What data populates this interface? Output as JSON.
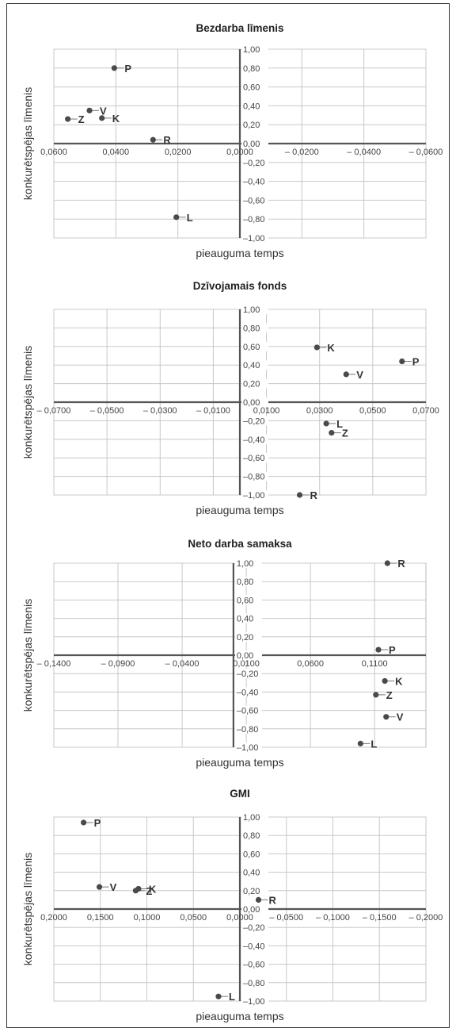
{
  "chart_data": [
    {
      "type": "scatter",
      "title": "Bezdarba līmenis",
      "xlabel": "pieauguma temps",
      "ylabel": "konkurētspējas līmenis",
      "xlim": [
        0.06,
        -0.06
      ],
      "ylim": [
        -1.0,
        1.0
      ],
      "x_reversed": true,
      "xticks": [
        "0,0600",
        "0,0400",
        "0,0200",
        "0,0000",
        "– 0,0200",
        "– 0,0400",
        "– 0,0600"
      ],
      "xtick_values": [
        0.06,
        0.04,
        0.02,
        0.0,
        -0.02,
        -0.04,
        -0.06
      ],
      "yticks": [
        "1,00",
        "0,80",
        "0,60",
        "0,40",
        "0,20",
        "0,00",
        "–0,20",
        "–0,40",
        "–0,60",
        "–0,80",
        "–1,00"
      ],
      "ytick_values": [
        1.0,
        0.8,
        0.6,
        0.4,
        0.2,
        0.0,
        -0.2,
        -0.4,
        -0.6,
        -0.8,
        -1.0
      ],
      "grid": true,
      "points": [
        {
          "label": "P",
          "x": 0.0405,
          "y": 0.8
        },
        {
          "label": "V",
          "x": 0.0485,
          "y": 0.35
        },
        {
          "label": "Z",
          "x": 0.0555,
          "y": 0.26
        },
        {
          "label": "K",
          "x": 0.0445,
          "y": 0.27
        },
        {
          "label": "R",
          "x": 0.028,
          "y": 0.04
        },
        {
          "label": "L",
          "x": 0.0205,
          "y": -0.78
        }
      ]
    },
    {
      "type": "scatter",
      "title": "Dzīvojamais fonds",
      "xlabel": "pieauguma temps",
      "ylabel": "konkurētspējas līmenis",
      "xlim": [
        -0.07,
        0.07
      ],
      "ylim": [
        -1.0,
        1.0
      ],
      "x_reversed": false,
      "xticks": [
        "– 0,0700",
        "– 0,0500",
        "– 0,0300",
        "– 0,0100",
        "0,0100",
        "0,0300",
        "0,0500",
        "0,0700"
      ],
      "xtick_values": [
        -0.07,
        -0.05,
        -0.03,
        -0.01,
        0.01,
        0.03,
        0.05,
        0.07
      ],
      "yticks": [
        "1,00",
        "0,80",
        "0,60",
        "0,40",
        "0,20",
        "0,00",
        "–0,20",
        "–0,40",
        "–0,60",
        "–0,80",
        "–1,00"
      ],
      "ytick_values": [
        1.0,
        0.8,
        0.6,
        0.4,
        0.2,
        0.0,
        -0.2,
        -0.4,
        -0.6,
        -0.8,
        -1.0
      ],
      "grid": true,
      "points": [
        {
          "label": "K",
          "x": 0.029,
          "y": 0.59
        },
        {
          "label": "P",
          "x": 0.061,
          "y": 0.44
        },
        {
          "label": "V",
          "x": 0.04,
          "y": 0.3
        },
        {
          "label": "L",
          "x": 0.0325,
          "y": -0.23
        },
        {
          "label": "Z",
          "x": 0.0345,
          "y": -0.33
        },
        {
          "label": "R",
          "x": 0.0225,
          "y": -1.0
        }
      ]
    },
    {
      "type": "scatter",
      "title": "Neto darba samaksa",
      "xlabel": "pieauguma temps",
      "ylabel": "konkurētspējas līmenis",
      "xlim": [
        -0.14,
        0.15
      ],
      "ylim": [
        -1.0,
        1.0
      ],
      "x_reversed": false,
      "xticks": [
        "– 0,1400",
        "– 0,0900",
        "– 0,0400",
        "0,0100",
        "0,0600",
        "0,1100"
      ],
      "xtick_values": [
        -0.14,
        -0.09,
        -0.04,
        0.01,
        0.06,
        0.11
      ],
      "yticks": [
        "1,00",
        "0,80",
        "0,60",
        "0,40",
        "0,20",
        "0,00",
        "–0,20",
        "–0,40",
        "–0,60",
        "–0,80",
        "–1,00"
      ],
      "ytick_values": [
        1.0,
        0.8,
        0.6,
        0.4,
        0.2,
        0.0,
        -0.2,
        -0.4,
        -0.6,
        -0.8,
        -1.0
      ],
      "grid": true,
      "points": [
        {
          "label": "R",
          "x": 0.12,
          "y": 1.0
        },
        {
          "label": "P",
          "x": 0.113,
          "y": 0.06
        },
        {
          "label": "K",
          "x": 0.118,
          "y": -0.28
        },
        {
          "label": "Z",
          "x": 0.111,
          "y": -0.43
        },
        {
          "label": "V",
          "x": 0.119,
          "y": -0.67
        },
        {
          "label": "L",
          "x": 0.099,
          "y": -0.96
        }
      ]
    },
    {
      "type": "scatter",
      "title": "GMI",
      "xlabel": "pieauguma temps",
      "ylabel": "konkurētspējas līmenis",
      "xlim": [
        0.2,
        -0.2
      ],
      "ylim": [
        -1.0,
        1.0
      ],
      "x_reversed": true,
      "xticks": [
        "0,2000",
        "0,1500",
        "0,1000",
        "0,0500",
        "0,0000",
        "– 0,0500",
        "– 0,1000",
        "– 0,1500",
        "– 0,2000"
      ],
      "xtick_values": [
        0.2,
        0.15,
        0.1,
        0.05,
        0.0,
        -0.05,
        -0.1,
        -0.15,
        -0.2
      ],
      "yticks": [
        "1,00",
        "0,80",
        "0,60",
        "0,40",
        "0,20",
        "0,00",
        "–0,20",
        "–0,40",
        "–0,60",
        "–0,80",
        "–1,00"
      ],
      "ytick_values": [
        1.0,
        0.8,
        0.6,
        0.4,
        0.2,
        0.0,
        -0.2,
        -0.4,
        -0.6,
        -0.8,
        -1.0
      ],
      "grid": true,
      "points": [
        {
          "label": "P",
          "x": 0.168,
          "y": 0.94
        },
        {
          "label": "V",
          "x": 0.151,
          "y": 0.24
        },
        {
          "label": "Z",
          "x": 0.112,
          "y": 0.2
        },
        {
          "label": "K",
          "x": 0.109,
          "y": 0.22
        },
        {
          "label": "R",
          "x": -0.02,
          "y": 0.1
        },
        {
          "label": "L",
          "x": 0.023,
          "y": -0.95
        }
      ]
    }
  ]
}
